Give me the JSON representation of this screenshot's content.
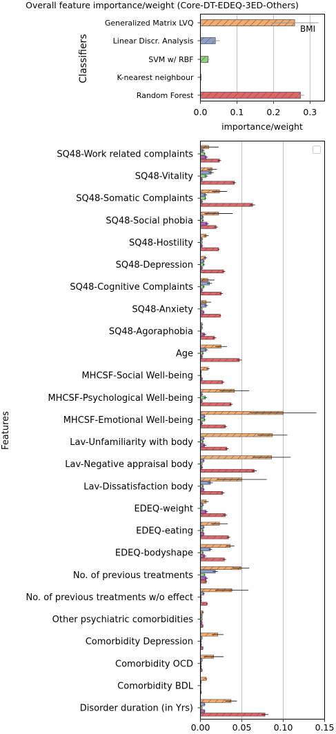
{
  "colors": {
    "Generalized Matrix LVQ": "#f5ab6c",
    "Linear Discr. Analysis": "#8ca0cb",
    "SVM w/ RBF": "#8ed17e",
    "K-nearest neighbour": "#b062c8",
    "Random Forest": "#e06468",
    "grid": "#b0b0b0"
  },
  "chart_data": [
    {
      "type": "bar",
      "orientation": "horizontal",
      "title": "Overall feature importance/weight (Core-DT-EDEQ-3ED-Others)",
      "xlabel": "importance/weight",
      "ylabel": "Classifiers",
      "xlim": [
        0,
        0.34
      ],
      "xticks": [
        "0.0",
        "0.1",
        "0.2",
        "0.3"
      ],
      "grid": "vertical",
      "categories": [
        "Generalized Matrix LVQ",
        "Linear Discr. Analysis",
        "SVM w/ RBF",
        "K-nearest neighbour",
        "Random Forest"
      ],
      "values": [
        0.258,
        0.041,
        0.021,
        0.001,
        0.274
      ],
      "errors": [
        0.065,
        0.012,
        0.004,
        0.0,
        0.01
      ],
      "annotation": "BMI"
    },
    {
      "type": "bar",
      "orientation": "horizontal",
      "title": "",
      "xlabel": "",
      "ylabel": "Features",
      "xlim": [
        0,
        0.15
      ],
      "xticks": [
        "0.00",
        "0.05",
        "0.10",
        "0.15"
      ],
      "grid": "vertical",
      "legend": "top-right",
      "categories": [
        "SQ48-Work related complaints",
        "SQ48-Vitality",
        "SQ48-Somatic Complaints",
        "SQ48-Social phobia",
        "SQ48-Hostility",
        "SQ48-Depression",
        "SQ48-Cognitive Complaints",
        "SQ48-Anxiety",
        "SQ48-Agoraphobia",
        "Age",
        "MHCSF-Social Well-being",
        "MHCSF-Psychological Well-being",
        "MHCSF-Emotional Well-being",
        "Lav-Unfamiliarity with body",
        "Lav-Negative appraisal body",
        "Lav-Dissatisfaction body",
        "EDEQ-weight",
        "EDEQ-eating",
        "EDEQ-bodyshape",
        "No. of previous treatments",
        "No. of previous treatments w/o effect",
        "Other psychiatric comorbidities",
        "Comorbidity Depression",
        "Comorbidity OCD",
        "Comorbidity BDL",
        "Disorder duration (in Yrs)"
      ],
      "series": [
        {
          "name": "Generalized Matrix LVQ",
          "values": [
            0.01,
            0.014,
            0.023,
            0.022,
            0.007,
            0.006,
            0.009,
            0.007,
            0.002,
            0.025,
            0.009,
            0.041,
            0.1,
            0.087,
            0.086,
            0.05,
            0.007,
            0.023,
            0.036,
            0.049,
            0.038,
            0.003,
            0.021,
            0.016,
            0.007,
            0.037
          ],
          "errors": [
            0.012,
            0.006,
            0.009,
            0.017,
            0.003,
            0.002,
            0.008,
            0.006,
            0.001,
            0.007,
            0.002,
            0.018,
            0.04,
            0.018,
            0.023,
            0.03,
            0.003,
            0.01,
            0.005,
            0.01,
            0.02,
            0.001,
            0.007,
            0.012,
            0.001,
            0.007
          ]
        },
        {
          "name": "Linear Discr. Analysis",
          "values": [
            0.003,
            0.013,
            0.006,
            0.003,
            0.002,
            0.004,
            0.011,
            0.007,
            0.002,
            0.007,
            0.001,
            0.002,
            0.005,
            0.004,
            0.004,
            0.012,
            0.003,
            0.004,
            0.012,
            0.018,
            0.004,
            0.002,
            0.002,
            0.002,
            0.001,
            0.005
          ],
          "errors": [
            0.002,
            0.003,
            0.002,
            0.001,
            0.001,
            0.001,
            0.003,
            0.002,
            0.001,
            0.002,
            0.0005,
            0.001,
            0.001,
            0.001,
            0.001,
            0.003,
            0.001,
            0.001,
            0.002,
            0.003,
            0.001,
            0.0005,
            0.0005,
            0.0005,
            0.0005,
            0.001
          ]
        },
        {
          "name": "SVM w/ RBF",
          "values": [
            0.005,
            0.007,
            0.006,
            0.003,
            0.002,
            0.004,
            0.004,
            0.002,
            0.001,
            0.003,
            0.001,
            0.006,
            0.005,
            0.003,
            0.002,
            0.003,
            0.002,
            0.003,
            0.003,
            0.005,
            0.001,
            0.002,
            0.001,
            0.001,
            0.0005,
            0.002
          ],
          "errors": [
            0.001,
            0.002,
            0.001,
            0.001,
            0.0005,
            0.001,
            0.001,
            0.0005,
            0.0005,
            0.001,
            0.0005,
            0.002,
            0.001,
            0.001,
            0.0005,
            0.001,
            0.0005,
            0.001,
            0.001,
            0.001,
            0.0005,
            0.0005,
            0.0005,
            0.0005,
            0.0005,
            0.0005
          ]
        },
        {
          "name": "K-nearest neighbour",
          "values": [
            0.007,
            0.002,
            0.002,
            0.008,
            0.002,
            0.002,
            0.002,
            0.004,
            0.005,
            0.002,
            0.002,
            0.002,
            0.002,
            0.005,
            0.002,
            0.004,
            0.007,
            0.004,
            0.005,
            0.007,
            0.001,
            0.002,
            0.001,
            0.001,
            0.0005,
            0.005
          ],
          "errors": [
            0.002,
            0.001,
            0.001,
            0.002,
            0.001,
            0.001,
            0.001,
            0.001,
            0.002,
            0.001,
            0.001,
            0.001,
            0.001,
            0.002,
            0.001,
            0.001,
            0.002,
            0.001,
            0.002,
            0.002,
            0.0005,
            0.0005,
            0.0005,
            0.0005,
            0.0005,
            0.001
          ]
        },
        {
          "name": "Random Forest",
          "values": [
            0.023,
            0.041,
            0.063,
            0.019,
            0.022,
            0.028,
            0.025,
            0.024,
            0.017,
            0.047,
            0.027,
            0.037,
            0.03,
            0.032,
            0.065,
            0.027,
            0.03,
            0.034,
            0.029,
            0.007,
            0.008,
            0.003,
            0.003,
            0.002,
            0.001,
            0.078
          ],
          "errors": [
            0.002,
            0.002,
            0.003,
            0.002,
            0.001,
            0.002,
            0.002,
            0.001,
            0.002,
            0.003,
            0.002,
            0.002,
            0.002,
            0.002,
            0.003,
            0.002,
            0.002,
            0.002,
            0.002,
            0.001,
            0.001,
            0.0005,
            0.0005,
            0.0005,
            0.0005,
            0.004
          ]
        }
      ]
    }
  ]
}
